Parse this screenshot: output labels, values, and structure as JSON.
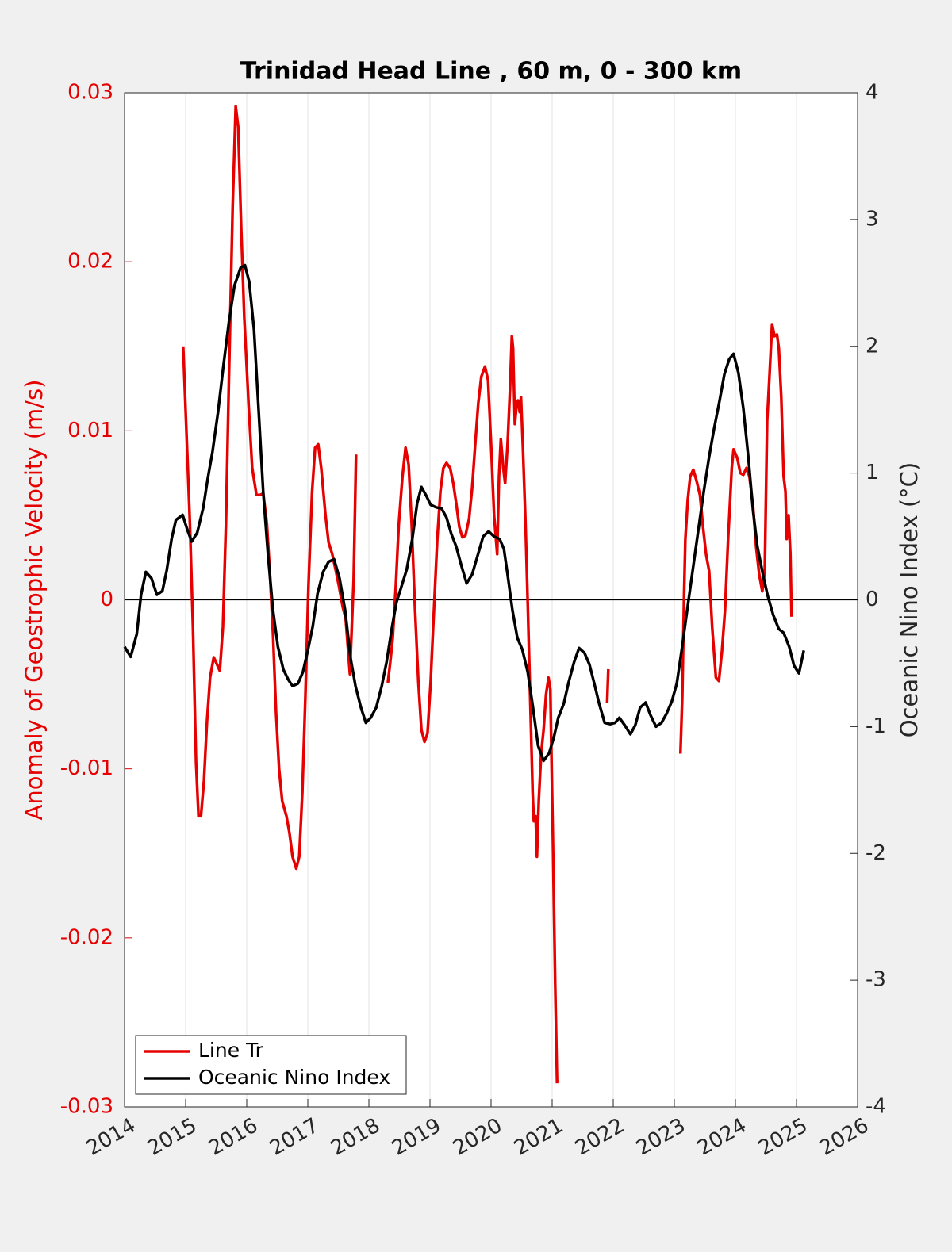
{
  "chart_data": {
    "type": "line",
    "title": "Trinidad Head Line , 60 m, 0 - 300 km",
    "y_label": "Anomaly of Geostrophic Velocity (m/s)",
    "y2_label": "Oceanic Nino Index (°C)",
    "xlim": [
      2014,
      2026
    ],
    "xticks": [
      2014,
      2015,
      2016,
      2017,
      2018,
      2019,
      2020,
      2021,
      2022,
      2023,
      2024,
      2025,
      2026
    ],
    "ylim": [
      -0.03,
      0.03
    ],
    "yticks": [
      -0.03,
      -0.02,
      -0.01,
      0,
      0.01,
      0.02,
      0.03
    ],
    "y2lim": [
      -4,
      4
    ],
    "y2ticks": [
      -4,
      -3,
      -2,
      -1,
      0,
      1,
      2,
      3,
      4
    ],
    "hline": 0,
    "grid": "x",
    "legend": "lower left",
    "y_color": "#e60000",
    "series": [
      {
        "name": "Line Tr",
        "color": "#e60000",
        "x": [
          2014.96,
          2015.01,
          2015.07,
          2015.12,
          2015.17,
          2015.21,
          2015.25,
          2015.3,
          2015.35,
          2015.4,
          2015.46,
          2015.51,
          2015.56,
          2015.61,
          2015.66,
          2015.71,
          2015.77,
          2015.82,
          2015.86,
          2015.91,
          2015.96,
          2016.03,
          2016.09,
          2016.16,
          2016.22,
          2016.27,
          2016.33,
          2016.38,
          2016.43,
          2016.48,
          2016.53,
          2016.58,
          2016.65,
          2016.7,
          2016.75,
          2016.81,
          2016.86,
          2016.91,
          2016.96,
          2017.01,
          2017.07,
          2017.12,
          2017.17,
          2017.22,
          2017.29,
          2017.34,
          2017.4,
          2017.46,
          2017.51,
          2017.57,
          2017.62,
          2017.69,
          2017.71,
          2017.75,
          2017.79,
          2018.0,
          2018.31,
          2018.35,
          2018.39,
          2018.44,
          2018.49,
          2018.55,
          2018.6,
          2018.65,
          2018.7,
          2018.75,
          2018.81,
          2018.86,
          2018.91,
          2018.96,
          2019.01,
          2019.07,
          2019.12,
          2019.17,
          2019.22,
          2019.27,
          2019.33,
          2019.38,
          2019.43,
          2019.48,
          2019.53,
          2019.58,
          2019.64,
          2019.69,
          2019.74,
          2019.79,
          2019.84,
          2019.9,
          2019.95,
          2020.0,
          2020.05,
          2020.1,
          2020.13,
          2020.16,
          2020.2,
          2020.23,
          2020.27,
          2020.31,
          2020.34,
          2020.36,
          2020.39,
          2020.42,
          2020.44,
          2020.47,
          2020.49,
          2020.52,
          2020.56,
          2020.6,
          2020.64,
          2020.68,
          2020.7,
          2020.73,
          2020.75,
          2020.78,
          2020.82,
          2020.86,
          2020.9,
          2020.94,
          2020.97,
          2021.01,
          2021.05,
          2021.08,
          2021.5,
          2021.9,
          2021.92,
          2022.5,
          2023.1,
          2023.13,
          2023.16,
          2023.18,
          2023.22,
          2023.26,
          2023.31,
          2023.36,
          2023.42,
          2023.47,
          2023.52,
          2023.57,
          2023.62,
          2023.68,
          2023.73,
          2023.78,
          2023.83,
          2023.88,
          2023.94,
          2023.97,
          2024.03,
          2024.08,
          2024.13,
          2024.18,
          2024.23,
          2024.29,
          2024.34,
          2024.39,
          2024.44,
          2024.48,
          2024.52,
          2024.56,
          2024.6,
          2024.64,
          2024.68,
          2024.71,
          2024.75,
          2024.79,
          2024.82,
          2024.84,
          2024.87,
          2024.9,
          2024.92
        ],
        "values": [
          0.015,
          0.0102,
          0.0045,
          -0.0016,
          -0.0096,
          -0.0128,
          -0.0128,
          -0.0107,
          -0.0072,
          -0.0046,
          -0.0034,
          -0.0038,
          -0.0042,
          -0.0016,
          0.0045,
          0.0134,
          0.0233,
          0.0292,
          0.028,
          0.0219,
          0.0167,
          0.0116,
          0.0078,
          0.0062,
          0.0062,
          0.0063,
          0.0045,
          0.0015,
          -0.002,
          -0.0067,
          -0.01,
          -0.0119,
          -0.0128,
          -0.0138,
          -0.0152,
          -0.0159,
          -0.0152,
          -0.0114,
          -0.0058,
          0.0008,
          0.0064,
          0.009,
          0.0092,
          0.0078,
          0.005,
          0.0034,
          0.0027,
          0.0017,
          0.0008,
          -0.0004,
          -0.0011,
          -0.0044,
          -0.0025,
          0.0012,
          0.0086,
          null,
          -0.0049,
          -0.0037,
          -0.0023,
          0.0008,
          0.0045,
          0.0073,
          0.009,
          0.008,
          0.0045,
          -0.0002,
          -0.0049,
          -0.0077,
          -0.0084,
          -0.0079,
          -0.0049,
          -0.0002,
          0.0036,
          0.0064,
          0.0078,
          0.0081,
          0.0078,
          0.0069,
          0.0057,
          0.0043,
          0.0037,
          0.0038,
          0.0048,
          0.0066,
          0.0092,
          0.0116,
          0.0132,
          0.0138,
          0.013,
          0.0092,
          0.005,
          0.0027,
          0.0073,
          0.0095,
          0.0078,
          0.0069,
          0.0092,
          0.0125,
          0.0156,
          0.0149,
          0.0104,
          0.0116,
          0.0118,
          0.0111,
          0.012,
          0.0092,
          0.005,
          -0.0002,
          -0.0058,
          -0.0114,
          -0.0131,
          -0.0128,
          -0.0152,
          -0.0119,
          -0.0091,
          -0.0077,
          -0.0056,
          -0.0046,
          -0.0053,
          -0.0138,
          -0.0227,
          -0.0286,
          null,
          -0.0061,
          -0.0041,
          null,
          -0.0091,
          -0.0058,
          0.0003,
          0.0036,
          0.0059,
          0.0073,
          0.0077,
          0.0071,
          0.0062,
          0.0043,
          0.0027,
          0.0017,
          -0.0016,
          -0.0046,
          -0.0048,
          -0.003,
          -0.0006,
          0.0036,
          0.0078,
          0.0089,
          0.0084,
          0.0075,
          0.0074,
          0.0078,
          0.0073,
          0.0055,
          0.0031,
          0.0015,
          0.0005,
          0.0017,
          0.0106,
          0.0134,
          0.0163,
          0.0156,
          0.0157,
          0.0149,
          0.012,
          0.0073,
          0.0064,
          0.0036,
          0.005,
          0.0027,
          -0.001
        ]
      },
      {
        "name": "Oceanic Nino Index",
        "color": "#000000",
        "axis": "y2",
        "x": [
          2014.0,
          2014.1,
          2014.2,
          2014.27,
          2014.35,
          2014.44,
          2014.53,
          2014.62,
          2014.69,
          2014.77,
          2014.84,
          2014.95,
          2015.03,
          2015.1,
          2015.19,
          2015.29,
          2015.36,
          2015.44,
          2015.53,
          2015.62,
          2015.71,
          2015.8,
          2015.9,
          2015.97,
          2016.04,
          2016.12,
          2016.19,
          2016.27,
          2016.35,
          2016.43,
          2016.51,
          2016.6,
          2016.68,
          2016.75,
          2016.84,
          2016.92,
          2017.0,
          2017.08,
          2017.16,
          2017.25,
          2017.34,
          2017.43,
          2017.52,
          2017.61,
          2017.7,
          2017.78,
          2017.87,
          2017.95,
          2018.03,
          2018.12,
          2018.21,
          2018.29,
          2018.38,
          2018.45,
          2018.53,
          2018.62,
          2018.71,
          2018.79,
          2018.86,
          2018.94,
          2019.01,
          2019.1,
          2019.19,
          2019.27,
          2019.35,
          2019.43,
          2019.52,
          2019.6,
          2019.69,
          2019.78,
          2019.87,
          2019.96,
          2020.05,
          2020.14,
          2020.21,
          2020.27,
          2020.35,
          2020.43,
          2020.51,
          2020.6,
          2020.68,
          2020.77,
          2020.86,
          2020.95,
          2021.03,
          2021.1,
          2021.19,
          2021.27,
          2021.36,
          2021.44,
          2021.53,
          2021.61,
          2021.69,
          2021.77,
          2021.86,
          2021.95,
          2022.03,
          2022.1,
          2022.19,
          2022.28,
          2022.36,
          2022.44,
          2022.53,
          2022.61,
          2022.7,
          2022.79,
          2022.87,
          2022.96,
          2023.04,
          2023.12,
          2023.21,
          2023.3,
          2023.39,
          2023.48,
          2023.57,
          2023.65,
          2023.74,
          2023.82,
          2023.9,
          2023.97,
          2024.05,
          2024.13,
          2024.21,
          2024.29,
          2024.36,
          2024.45,
          2024.53,
          2024.62,
          2024.71,
          2024.79,
          2024.88,
          2024.96,
          2025.04,
          2025.12
        ],
        "values": [
          -0.37,
          -0.45,
          -0.27,
          0.04,
          0.22,
          0.17,
          0.04,
          0.07,
          0.23,
          0.48,
          0.63,
          0.67,
          0.55,
          0.46,
          0.53,
          0.73,
          0.95,
          1.17,
          1.48,
          1.85,
          2.2,
          2.48,
          2.62,
          2.64,
          2.51,
          2.13,
          1.54,
          0.85,
          0.35,
          -0.08,
          -0.37,
          -0.55,
          -0.63,
          -0.68,
          -0.66,
          -0.57,
          -0.4,
          -0.21,
          0.05,
          0.22,
          0.3,
          0.32,
          0.17,
          -0.08,
          -0.46,
          -0.68,
          -0.85,
          -0.97,
          -0.93,
          -0.85,
          -0.68,
          -0.49,
          -0.21,
          -0.02,
          0.1,
          0.24,
          0.48,
          0.76,
          0.89,
          0.82,
          0.75,
          0.73,
          0.72,
          0.65,
          0.52,
          0.42,
          0.26,
          0.13,
          0.2,
          0.35,
          0.5,
          0.54,
          0.5,
          0.48,
          0.4,
          0.2,
          -0.08,
          -0.3,
          -0.39,
          -0.57,
          -0.83,
          -1.15,
          -1.27,
          -1.21,
          -1.08,
          -0.93,
          -0.82,
          -0.65,
          -0.49,
          -0.38,
          -0.42,
          -0.51,
          -0.66,
          -0.82,
          -0.97,
          -0.98,
          -0.97,
          -0.93,
          -0.99,
          -1.06,
          -0.99,
          -0.85,
          -0.81,
          -0.91,
          -1.0,
          -0.97,
          -0.9,
          -0.8,
          -0.66,
          -0.4,
          -0.08,
          0.23,
          0.54,
          0.85,
          1.13,
          1.35,
          1.57,
          1.78,
          1.9,
          1.94,
          1.79,
          1.51,
          1.13,
          0.7,
          0.42,
          0.2,
          0.03,
          -0.12,
          -0.23,
          -0.26,
          -0.37,
          -0.52,
          -0.58,
          -0.4
        ]
      }
    ]
  }
}
